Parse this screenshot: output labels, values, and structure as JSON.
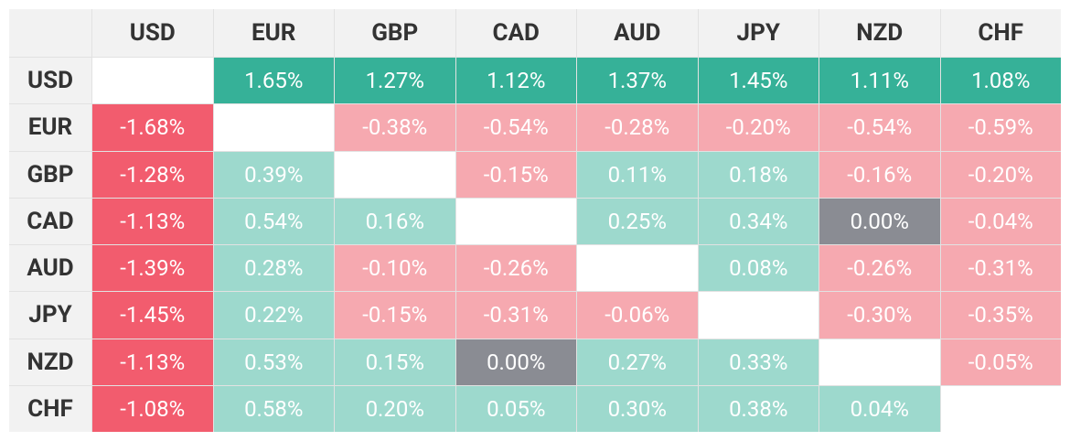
{
  "table": {
    "columns": [
      "USD",
      "EUR",
      "GBP",
      "CAD",
      "AUD",
      "JPY",
      "NZD",
      "CHF"
    ],
    "rows": [
      {
        "label": "USD",
        "cells": [
          null,
          "1.65%",
          "1.27%",
          "1.12%",
          "1.37%",
          "1.45%",
          "1.11%",
          "1.08%"
        ]
      },
      {
        "label": "EUR",
        "cells": [
          "-1.68%",
          null,
          "-0.38%",
          "-0.54%",
          "-0.28%",
          "-0.20%",
          "-0.54%",
          "-0.59%"
        ]
      },
      {
        "label": "GBP",
        "cells": [
          "-1.28%",
          "0.39%",
          null,
          "-0.15%",
          "0.11%",
          "0.18%",
          "-0.16%",
          "-0.20%"
        ]
      },
      {
        "label": "CAD",
        "cells": [
          "-1.13%",
          "0.54%",
          "0.16%",
          null,
          "0.25%",
          "0.34%",
          "0.00%",
          "-0.04%"
        ]
      },
      {
        "label": "AUD",
        "cells": [
          "-1.39%",
          "0.28%",
          "-0.10%",
          "-0.26%",
          null,
          "0.08%",
          "-0.26%",
          "-0.31%"
        ]
      },
      {
        "label": "JPY",
        "cells": [
          "-1.45%",
          "0.22%",
          "-0.15%",
          "-0.31%",
          "-0.06%",
          null,
          "-0.30%",
          "-0.35%"
        ]
      },
      {
        "label": "NZD",
        "cells": [
          "-1.13%",
          "0.53%",
          "0.15%",
          "0.00%",
          "0.27%",
          "0.33%",
          null,
          "-0.05%"
        ]
      },
      {
        "label": "CHF",
        "cells": [
          "-1.08%",
          "0.58%",
          "0.20%",
          "0.05%",
          "0.30%",
          "0.38%",
          "0.04%",
          null
        ]
      }
    ]
  },
  "palette": {
    "strong_up": "#36b198",
    "up": "#9dd9cd",
    "down": "#f6a9b0",
    "strong_down": "#f25c6e",
    "flat": "#8a8c93",
    "empty": "#ffffff"
  }
}
